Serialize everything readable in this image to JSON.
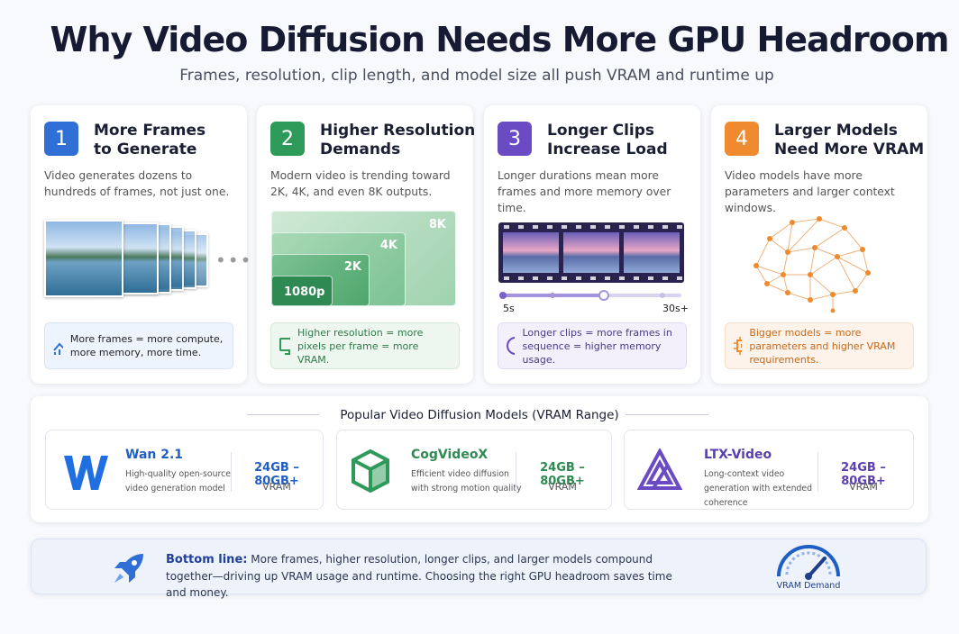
{
  "header": {
    "title": "Why Video Diffusion Needs More GPU Headroom",
    "subtitle": "Frames, resolution, clip length, and model size all push VRAM and runtime up"
  },
  "cards": [
    {
      "number": 1,
      "title": [
        "More Frames",
        "to Generate"
      ],
      "description": "Video generates dozens to hundreds of frames, not just one.",
      "note": "More frames = more compute, more memory, more time."
    },
    {
      "number": 2,
      "title": [
        "Higher Resolution",
        "Demands"
      ],
      "description": "Modern video is trending toward 2K, 4K, and even 8K outputs.",
      "resolutions": [
        "8K",
        "4K",
        "2K",
        "1080p"
      ],
      "note": "Higher resolution = more pixels per frame = more VRAM."
    },
    {
      "number": 3,
      "title": [
        "Longer Clips",
        "Increase Load"
      ],
      "description": "Longer durations mean more frames and more memory over time.",
      "timeline": [
        "5s",
        "30s+"
      ],
      "note": "Longer clips = more frames in sequence = higher memory usage."
    },
    {
      "number": 4,
      "title": [
        "Larger Models",
        "Need More VRAM"
      ],
      "description": "Video models have more parameters and larger context windows.",
      "note": "Bigger models = more parameters and higher VRAM requirements."
    }
  ],
  "models": {
    "title": "Popular Video Diffusion Models (VRAM Range)",
    "items": [
      {
        "name": "Wan 2.1",
        "description": "High-quality open-source video generation model",
        "vram": "24GB – 80GB+",
        "unit": "VRAM"
      },
      {
        "name": "CogVideoX",
        "description": "Efficient video diffusion with strong motion quality",
        "vram": "24GB – 80GB+",
        "unit": "VRAM"
      },
      {
        "name": "LTX-Video",
        "description": "Long-context video generation with extended coherence",
        "vram": "24GB – 80GB+",
        "unit": "VRAM"
      }
    ]
  },
  "bottom": {
    "lead": "Bottom line:",
    "text": "More frames, higher resolution, longer clips, and larger models compound together—driving up VRAM usage and runtime. Choosing the right GPU headroom saves time and money.",
    "gauge_label": "VRAM Demand"
  }
}
